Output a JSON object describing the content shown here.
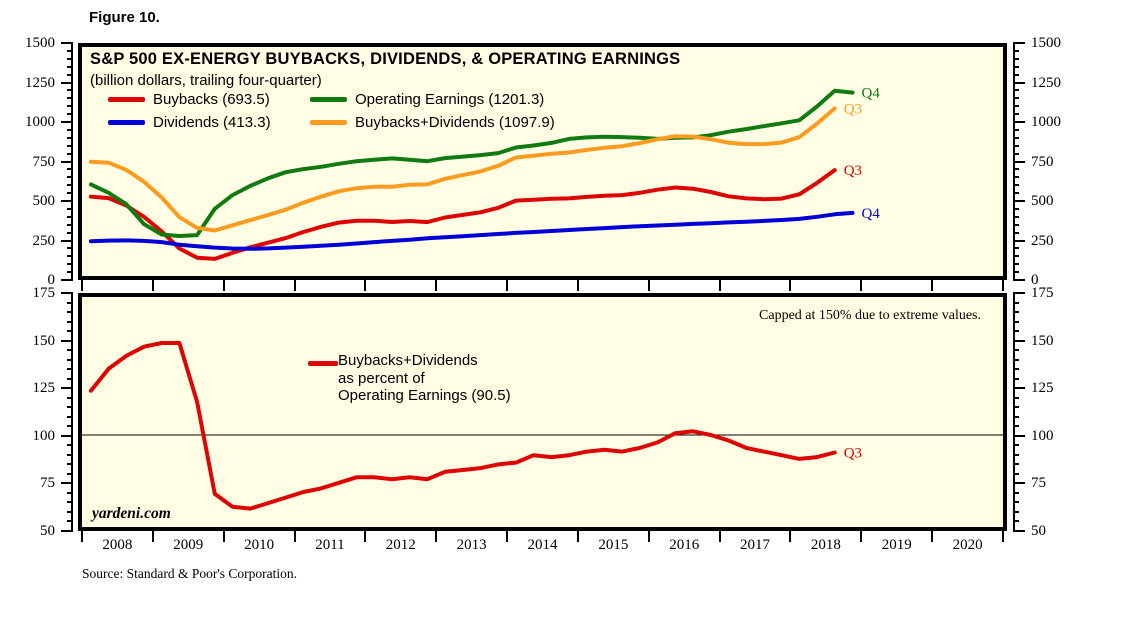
{
  "figure_label": "Figure 10.",
  "source": "Source: Standard & Poor's Corporation.",
  "watermark": "yardeni.com",
  "chart_data": [
    {
      "type": "line",
      "panel": "top",
      "title": "S&P 500 EX-ENERGY BUYBACKS, DIVIDENDS, & OPERATING EARNINGS",
      "subtitle": "(billion dollars, trailing four-quarter)",
      "xlim": [
        2008,
        2021
      ],
      "ylim": [
        0,
        1500
      ],
      "y_major_step": 250,
      "y_minor_step": 50,
      "y_tick_labels": [
        "0",
        "250",
        "500",
        "750",
        "1000",
        "1250",
        "1500"
      ],
      "x_tick_labels": [
        "2008",
        "2009",
        "2010",
        "2011",
        "2012",
        "2013",
        "2014",
        "2015",
        "2016",
        "2017",
        "2018",
        "2019",
        "2020"
      ],
      "x_start": 2008.125,
      "x_step": 0.25,
      "grid": false,
      "legend_position": "inside-top-left",
      "series": [
        {
          "name": "Buybacks (693.5)",
          "color": "#de0505",
          "end_label": "Q3",
          "values": [
            520,
            510,
            462,
            388,
            292,
            180,
            120,
            112,
            152,
            188,
            218,
            248,
            288,
            322,
            350,
            362,
            362,
            354,
            360,
            353,
            383,
            400,
            417,
            447,
            494,
            500,
            506,
            508,
            518,
            526,
            530,
            545,
            565,
            580,
            572,
            550,
            522,
            508,
            503,
            507,
            535,
            610,
            693.5
          ]
        },
        {
          "name": "Dividends (413.3)",
          "color": "#0202d6",
          "end_label": "Q4",
          "values": [
            228,
            232,
            233,
            230,
            222,
            205,
            195,
            186,
            180,
            178,
            181,
            186,
            192,
            198,
            205,
            213,
            222,
            230,
            238,
            247,
            254,
            261,
            268,
            275,
            282,
            288,
            295,
            301,
            308,
            314,
            320,
            326,
            331,
            336,
            341,
            346,
            351,
            356,
            361,
            367,
            374,
            388,
            404,
            413.3
          ]
        },
        {
          "name": "Operating Earnings (1201.3)",
          "color": "#117b11",
          "end_label": "Q4",
          "values": [
            600,
            545,
            470,
            340,
            272,
            262,
            268,
            440,
            530,
            590,
            640,
            680,
            700,
            715,
            735,
            752,
            762,
            770,
            762,
            752,
            772,
            782,
            792,
            805,
            842,
            855,
            872,
            898,
            908,
            912,
            910,
            905,
            898,
            905,
            908,
            922,
            945,
            962,
            982,
            1000,
            1020,
            1110,
            1213,
            1201.3
          ]
        },
        {
          "name": "Buybacks+Dividends (1097.9)",
          "color": "#fb9b1f",
          "end_label": "Q3",
          "values": [
            748,
            742,
            695,
            618,
            514,
            385,
            315,
            298,
            332,
            366,
            399,
            434,
            480,
            520,
            555,
            575,
            584,
            584,
            598,
            600,
            637,
            661,
            685,
            722,
            776,
            788,
            801,
            809,
            826,
            840,
            850,
            871,
            896,
            916,
            913,
            896,
            873,
            864,
            864,
            874,
            909,
            998,
            1097.9
          ]
        }
      ]
    },
    {
      "type": "line",
      "panel": "bottom",
      "annotation": "Capped at 150% due to extreme values.",
      "legend_lines": [
        "Buybacks+Dividends",
        "as percent of",
        "Operating Earnings (90.5)"
      ],
      "xlim": [
        2008,
        2021
      ],
      "ylim": [
        50,
        175
      ],
      "y_major_step": 25,
      "y_minor_step": 5,
      "y_tick_labels": [
        "50",
        "75",
        "100",
        "125",
        "150",
        "175"
      ],
      "x_tick_labels": [
        "2008",
        "2009",
        "2010",
        "2011",
        "2012",
        "2013",
        "2014",
        "2015",
        "2016",
        "2017",
        "2018",
        "2019",
        "2020"
      ],
      "x_start": 2008.125,
      "x_step": 0.25,
      "refline": 100,
      "grid": false,
      "series": [
        {
          "name": "Buybacks+Dividends as percent of Operating Earnings (90.5)",
          "color": "#de0505",
          "end_label": "Q3",
          "values": [
            124,
            136,
            143,
            148,
            150,
            150,
            118,
            68,
            61,
            60,
            63,
            66,
            69,
            71,
            74,
            77,
            77,
            76,
            77,
            76,
            80,
            81,
            82,
            84,
            85,
            89,
            88,
            89,
            91,
            92,
            91,
            93,
            96,
            101,
            102,
            100,
            97,
            93,
            91,
            89,
            87,
            88,
            90.5
          ]
        }
      ]
    }
  ]
}
